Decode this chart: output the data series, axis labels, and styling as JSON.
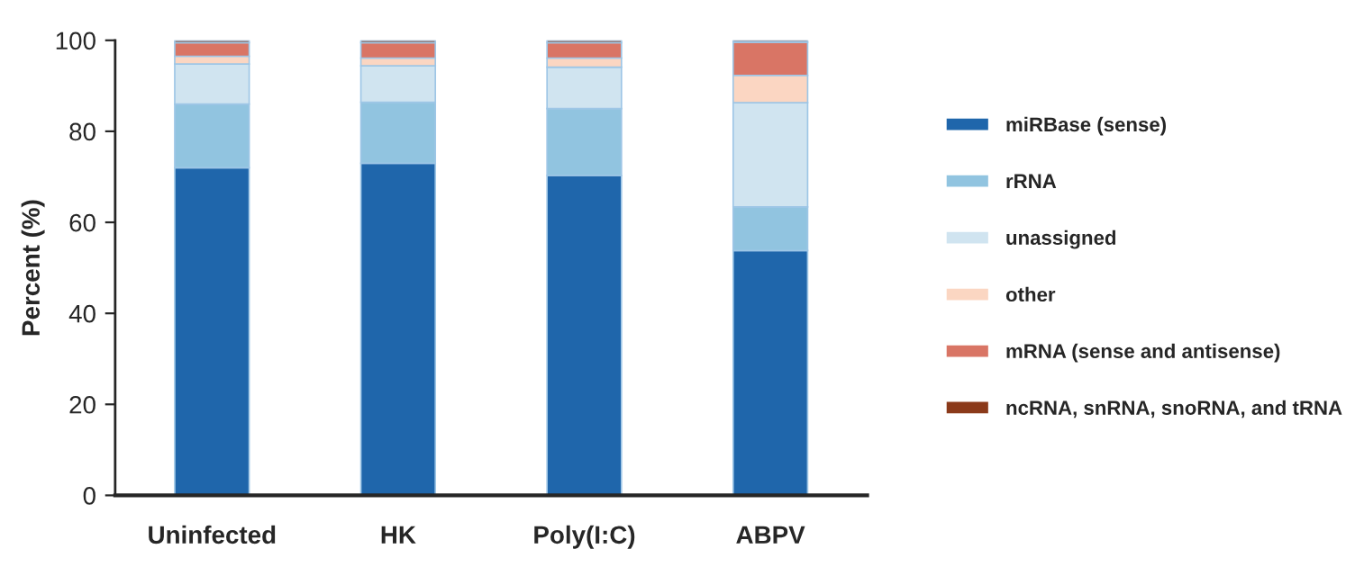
{
  "chart_data": {
    "type": "bar",
    "stacked": true,
    "ylabel": "Percent (%)",
    "categories": [
      "Uninfected",
      "HK",
      "Poly(I:C)",
      "ABPV"
    ],
    "series": [
      {
        "name": "miRBase (sense)",
        "color": "#1f66ab",
        "values": [
          72,
          73,
          70.3,
          53.8
        ]
      },
      {
        "name": "rRNA",
        "color": "#91c4e0",
        "values": [
          14,
          13.4,
          14.7,
          9.6
        ]
      },
      {
        "name": "unassigned",
        "color": "#d0e4f0",
        "values": [
          8.8,
          8,
          9.1,
          22.9
        ]
      },
      {
        "name": "other",
        "color": "#fbd6c2",
        "values": [
          1.7,
          1.7,
          2,
          6
        ]
      },
      {
        "name": "mRNA (sense and antisense)",
        "color": "#d97565",
        "values": [
          3,
          3.4,
          3.4,
          7.3
        ]
      },
      {
        "name": "ncRNA, snRNA, snoRNA, and tRNA",
        "color": "#8b3a1a",
        "values": [
          0.5,
          0.5,
          0.5,
          0.4
        ]
      }
    ],
    "ylim": [
      0,
      100
    ],
    "yticks": [
      0,
      20,
      40,
      60,
      80,
      100
    ],
    "grid": false,
    "legend": "right"
  }
}
